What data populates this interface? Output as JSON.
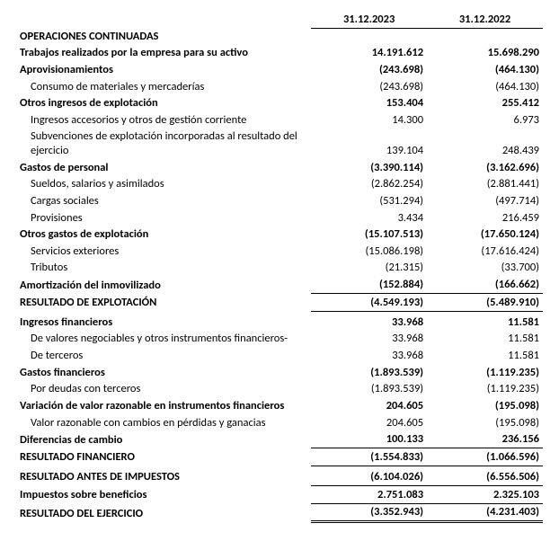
{
  "columns": {
    "col1": "31.12.2023",
    "col2": "31.12.2022"
  },
  "rows": [
    {
      "id": "op-cont",
      "label": "OPERACIONES CONTINUADAS",
      "a": "",
      "b": "",
      "bold": true
    },
    {
      "id": "trab-activo",
      "label": "Trabajos realizados por la empresa para su activo",
      "a": "14.191.612",
      "b": "15.698.290",
      "bold": true
    },
    {
      "id": "aprov",
      "label": "Aprovisionamientos",
      "a": "(243.698)",
      "b": "(464.130)",
      "bold": true
    },
    {
      "id": "aprov-consumo",
      "label": "Consumo de materiales y mercaderías",
      "a": "(243.698)",
      "b": "(464.130)",
      "indent": 1
    },
    {
      "id": "otros-ing",
      "label": "Otros ingresos de explotación",
      "a": "153.404",
      "b": "255.412",
      "bold": true
    },
    {
      "id": "otros-ing-acc",
      "label": "Ingresos accesorios y otros de gestión corriente",
      "a": "14.300",
      "b": "6.973",
      "indent": 1
    },
    {
      "id": "otros-ing-subv",
      "label": "Subvenciones de explotación incorporadas al resultado del ejercicio",
      "a": "139.104",
      "b": "248.439",
      "indent": 1
    },
    {
      "id": "gastos-pers",
      "label": "Gastos de personal",
      "a": "(3.390.114)",
      "b": "(3.162.696)",
      "bold": true
    },
    {
      "id": "gp-sueldos",
      "label": "Sueldos, salarios y asimilados",
      "a": "(2.862.254)",
      "b": "(2.881.441)",
      "indent": 1
    },
    {
      "id": "gp-cargas",
      "label": "Cargas sociales",
      "a": "(531.294)",
      "b": "(497.714)",
      "indent": 1
    },
    {
      "id": "gp-prov",
      "label": "Provisiones",
      "a": "3.434",
      "b": "216.459",
      "indent": 1
    },
    {
      "id": "otros-gastos",
      "label": "Otros gastos de explotación",
      "a": "(15.107.513)",
      "b": "(17.650.124)",
      "bold": true
    },
    {
      "id": "og-serv",
      "label": "Servicios exteriores",
      "a": "(15.086.198)",
      "b": "(17.616.424)",
      "indent": 1
    },
    {
      "id": "og-trib",
      "label": "Tributos",
      "a": "(21.315)",
      "b": "(33.700)",
      "indent": 1
    },
    {
      "id": "amort",
      "label": "Amortización del inmovilizado",
      "a": "(152.884)",
      "b": "(166.662)",
      "bold": true,
      "underline": true
    },
    {
      "id": "res-explot",
      "label": "RESULTADO DE EXPLOTACIÓN",
      "a": "(4.549.193)",
      "b": "(5.489.910)",
      "bold": true,
      "underline": true
    },
    {
      "id": "ing-fin",
      "label": "Ingresos financieros",
      "a": "33.968",
      "b": "11.581",
      "bold": true,
      "gap": true
    },
    {
      "id": "ing-fin-val",
      "label": "De valores negociables y otros instrumentos financieros-",
      "a": "33.968",
      "b": "11.581",
      "indent": 1
    },
    {
      "id": "ing-fin-ter",
      "label": "De terceros",
      "a": "33.968",
      "b": "11.581",
      "indent": 2
    },
    {
      "id": "gastos-fin",
      "label": "Gastos financieros",
      "a": "(1.893.539)",
      "b": "(1.119.235)",
      "bold": true
    },
    {
      "id": "gf-deudas",
      "label": "Por deudas con terceros",
      "a": "(1.893.539)",
      "b": "(1.119.235)",
      "indent": 1
    },
    {
      "id": "var-valor",
      "label": "Variación de valor razonable en instrumentos financieros",
      "a": "204.605",
      "b": "(195.098)",
      "bold": true
    },
    {
      "id": "var-valor-sub",
      "label": "Valor razonable con cambios en pérdidas y ganacias",
      "a": "204.605",
      "b": "(195.098)",
      "indent": 1
    },
    {
      "id": "dif-cambio",
      "label": "Diferencias de cambio",
      "a": "100.133",
      "b": "236.156",
      "bold": true,
      "underline": true
    },
    {
      "id": "res-fin",
      "label": "RESULTADO FINANCIERO",
      "a": "(1.554.833)",
      "b": "(1.066.596)",
      "bold": true,
      "underline": true
    },
    {
      "id": "res-antes-imp",
      "label": "RESULTADO ANTES DE IMPUESTOS",
      "a": "(6.104.026)",
      "b": "(6.556.506)",
      "bold": true,
      "underline": true,
      "gap": true
    },
    {
      "id": "imp-benef",
      "label": "Impuestos sobre beneficios",
      "a": "2.751.083",
      "b": "2.325.103",
      "bold": true,
      "underline": true
    },
    {
      "id": "res-ejerc",
      "label": "RESULTADO DEL EJERCICIO",
      "a": "(3.352.943)",
      "b": "(4.231.403)",
      "bold": true,
      "double": true
    }
  ]
}
